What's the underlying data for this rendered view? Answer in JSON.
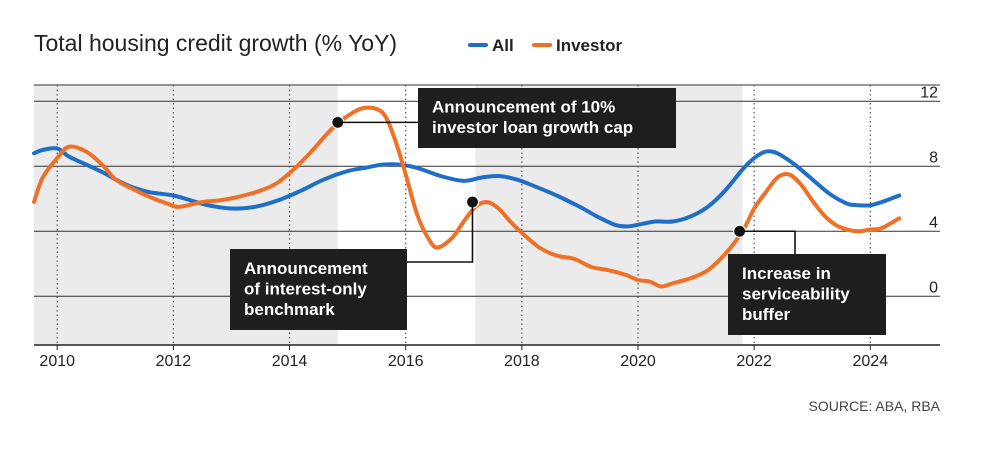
{
  "colors": {
    "all": "#1f6fc9",
    "investor": "#f07026",
    "shade": "#ebebeb",
    "annotation_bg": "#1e1e1e",
    "grid": "#333333"
  },
  "chart_data": {
    "type": "line",
    "title": "Total housing credit growth (% YoY)",
    "xlabel": "",
    "ylabel": "",
    "xlim": [
      2009.6,
      2025.2
    ],
    "ylim": [
      -3,
      13
    ],
    "x_ticks": [
      2010,
      2012,
      2014,
      2016,
      2018,
      2020,
      2022,
      2024
    ],
    "x_tick_labels": [
      "2010",
      "2012",
      "2014",
      "2016",
      "2018",
      "2020",
      "2022",
      "2024"
    ],
    "y_ticks": [
      0,
      4,
      8,
      12
    ],
    "y_tick_labels": [
      "0",
      "4",
      "8",
      "12"
    ],
    "shaded_periods": [
      [
        2009.6,
        2014.83
      ],
      [
        2017.2,
        2021.8
      ]
    ],
    "series": [
      {
        "name": "All",
        "color_key": "all",
        "points": [
          [
            2009.6,
            8.8
          ],
          [
            2009.75,
            9.0
          ],
          [
            2010.0,
            9.1
          ],
          [
            2010.2,
            8.6
          ],
          [
            2010.5,
            8.1
          ],
          [
            2010.8,
            7.6
          ],
          [
            2011.0,
            7.2
          ],
          [
            2011.3,
            6.7
          ],
          [
            2011.6,
            6.4
          ],
          [
            2012.0,
            6.2
          ],
          [
            2012.3,
            5.9
          ],
          [
            2012.6,
            5.6
          ],
          [
            2013.0,
            5.4
          ],
          [
            2013.4,
            5.5
          ],
          [
            2013.8,
            5.9
          ],
          [
            2014.2,
            6.5
          ],
          [
            2014.6,
            7.2
          ],
          [
            2015.0,
            7.7
          ],
          [
            2015.3,
            7.9
          ],
          [
            2015.6,
            8.1
          ],
          [
            2015.9,
            8.1
          ],
          [
            2016.2,
            7.9
          ],
          [
            2016.6,
            7.4
          ],
          [
            2017.0,
            7.1
          ],
          [
            2017.3,
            7.3
          ],
          [
            2017.6,
            7.4
          ],
          [
            2017.9,
            7.2
          ],
          [
            2018.2,
            6.8
          ],
          [
            2018.6,
            6.2
          ],
          [
            2019.0,
            5.5
          ],
          [
            2019.3,
            4.9
          ],
          [
            2019.6,
            4.4
          ],
          [
            2019.8,
            4.3
          ],
          [
            2020.0,
            4.4
          ],
          [
            2020.3,
            4.6
          ],
          [
            2020.6,
            4.6
          ],
          [
            2020.9,
            4.9
          ],
          [
            2021.2,
            5.5
          ],
          [
            2021.5,
            6.5
          ],
          [
            2021.8,
            7.8
          ],
          [
            2022.0,
            8.5
          ],
          [
            2022.2,
            8.9
          ],
          [
            2022.4,
            8.8
          ],
          [
            2022.7,
            8.1
          ],
          [
            2023.0,
            7.2
          ],
          [
            2023.3,
            6.3
          ],
          [
            2023.6,
            5.7
          ],
          [
            2023.8,
            5.6
          ],
          [
            2024.0,
            5.6
          ],
          [
            2024.2,
            5.8
          ],
          [
            2024.5,
            6.2
          ]
        ]
      },
      {
        "name": "Investor",
        "color_key": "investor",
        "points": [
          [
            2009.6,
            5.8
          ],
          [
            2009.75,
            7.3
          ],
          [
            2010.0,
            8.5
          ],
          [
            2010.2,
            9.2
          ],
          [
            2010.5,
            8.9
          ],
          [
            2010.8,
            8.0
          ],
          [
            2011.0,
            7.2
          ],
          [
            2011.3,
            6.6
          ],
          [
            2011.6,
            6.1
          ],
          [
            2011.9,
            5.7
          ],
          [
            2012.1,
            5.5
          ],
          [
            2012.5,
            5.8
          ],
          [
            2012.8,
            5.9
          ],
          [
            2013.1,
            6.1
          ],
          [
            2013.5,
            6.5
          ],
          [
            2013.8,
            7.0
          ],
          [
            2014.1,
            7.9
          ],
          [
            2014.4,
            9.0
          ],
          [
            2014.7,
            10.2
          ],
          [
            2015.0,
            11.1
          ],
          [
            2015.3,
            11.6
          ],
          [
            2015.6,
            11.3
          ],
          [
            2015.8,
            9.8
          ],
          [
            2016.0,
            7.5
          ],
          [
            2016.2,
            5.0
          ],
          [
            2016.4,
            3.5
          ],
          [
            2016.55,
            3.0
          ],
          [
            2016.8,
            3.6
          ],
          [
            2017.0,
            4.6
          ],
          [
            2017.2,
            5.5
          ],
          [
            2017.4,
            5.8
          ],
          [
            2017.6,
            5.4
          ],
          [
            2017.8,
            4.6
          ],
          [
            2018.0,
            3.9
          ],
          [
            2018.3,
            3.0
          ],
          [
            2018.6,
            2.5
          ],
          [
            2018.9,
            2.3
          ],
          [
            2019.2,
            1.8
          ],
          [
            2019.5,
            1.6
          ],
          [
            2019.8,
            1.3
          ],
          [
            2020.0,
            1.0
          ],
          [
            2020.2,
            0.9
          ],
          [
            2020.4,
            0.6
          ],
          [
            2020.6,
            0.8
          ],
          [
            2020.9,
            1.1
          ],
          [
            2021.2,
            1.6
          ],
          [
            2021.5,
            2.6
          ],
          [
            2021.8,
            4.0
          ],
          [
            2022.0,
            5.4
          ],
          [
            2022.2,
            6.4
          ],
          [
            2022.4,
            7.3
          ],
          [
            2022.6,
            7.5
          ],
          [
            2022.8,
            6.9
          ],
          [
            2023.0,
            5.9
          ],
          [
            2023.2,
            5.0
          ],
          [
            2023.4,
            4.4
          ],
          [
            2023.6,
            4.1
          ],
          [
            2023.8,
            4.0
          ],
          [
            2024.0,
            4.1
          ],
          [
            2024.2,
            4.2
          ],
          [
            2024.5,
            4.8
          ]
        ]
      }
    ],
    "annotations": [
      {
        "id": "cap",
        "point": [
          2014.83,
          10.7
        ],
        "lines": [
          "Announcement of 10%",
          "investor loan growth cap"
        ]
      },
      {
        "id": "io",
        "point": [
          2017.15,
          5.8
        ],
        "lines": [
          "Announcement",
          "of interest-only",
          "benchmark"
        ]
      },
      {
        "id": "buffer",
        "point": [
          2021.75,
          4.0
        ],
        "lines": [
          "Increase in",
          "serviceability",
          "buffer"
        ]
      }
    ],
    "legend": [
      {
        "label": "All",
        "color_key": "all"
      },
      {
        "label": "Investor",
        "color_key": "investor"
      }
    ],
    "legend_position": "top"
  },
  "source": "SOURCE: ABA, RBA"
}
